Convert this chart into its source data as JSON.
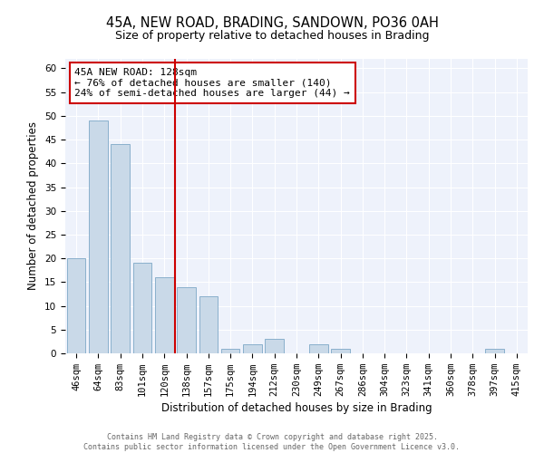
{
  "title": "45A, NEW ROAD, BRADING, SANDOWN, PO36 0AH",
  "subtitle": "Size of property relative to detached houses in Brading",
  "xlabel": "Distribution of detached houses by size in Brading",
  "ylabel": "Number of detached properties",
  "categories": [
    "46sqm",
    "64sqm",
    "83sqm",
    "101sqm",
    "120sqm",
    "138sqm",
    "157sqm",
    "175sqm",
    "194sqm",
    "212sqm",
    "230sqm",
    "249sqm",
    "267sqm",
    "286sqm",
    "304sqm",
    "323sqm",
    "341sqm",
    "360sqm",
    "378sqm",
    "397sqm",
    "415sqm"
  ],
  "values": [
    20,
    49,
    44,
    19,
    16,
    14,
    12,
    1,
    2,
    3,
    0,
    2,
    1,
    0,
    0,
    0,
    0,
    0,
    0,
    1,
    0
  ],
  "bar_color": "#c9d9e8",
  "bar_edge_color": "#8ab0cc",
  "vline_x": 4.5,
  "vline_color": "#cc0000",
  "annotation_title": "45A NEW ROAD: 128sqm",
  "annotation_line1": "← 76% of detached houses are smaller (140)",
  "annotation_line2": "24% of semi-detached houses are larger (44) →",
  "annotation_box_color": "#cc0000",
  "ylim": [
    0,
    62
  ],
  "yticks": [
    0,
    5,
    10,
    15,
    20,
    25,
    30,
    35,
    40,
    45,
    50,
    55,
    60
  ],
  "background_color": "#eef2fb",
  "grid_color": "#ffffff",
  "footer1": "Contains HM Land Registry data © Crown copyright and database right 2025.",
  "footer2": "Contains public sector information licensed under the Open Government Licence v3.0.",
  "title_fontsize": 10.5,
  "subtitle_fontsize": 9,
  "axis_label_fontsize": 8.5,
  "tick_fontsize": 7.5,
  "annotation_fontsize": 8
}
